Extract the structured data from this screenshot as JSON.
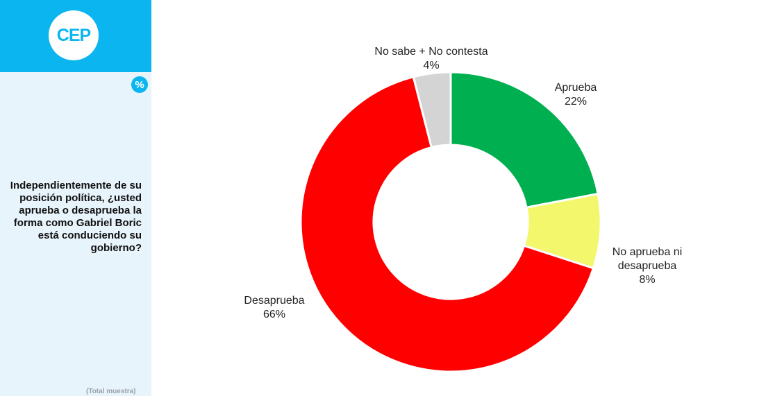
{
  "brand": {
    "logo_text": "CEP",
    "badge_symbol": "%"
  },
  "question": "Independientemente de su posición política, ¿usted aprueba o desaprueba la forma como Gabriel Boric está conduciendo su gobierno?",
  "footnote": "(Total muestra)",
  "chart_data": {
    "type": "pie",
    "donut": true,
    "start": "top, clockwise",
    "slices": [
      {
        "label": "Aprueba",
        "value": 22,
        "display": "22%",
        "color": "#00b050"
      },
      {
        "label": "No aprueba ni desaprueba",
        "value": 8,
        "display": "8%",
        "color": "#f2f76b"
      },
      {
        "label": "Desaprueba",
        "value": 66,
        "display": "66%",
        "color": "#ff0000"
      },
      {
        "label": "No sabe + No contesta",
        "value": 4,
        "display": "4%",
        "color": "#d4d4d4"
      }
    ]
  }
}
